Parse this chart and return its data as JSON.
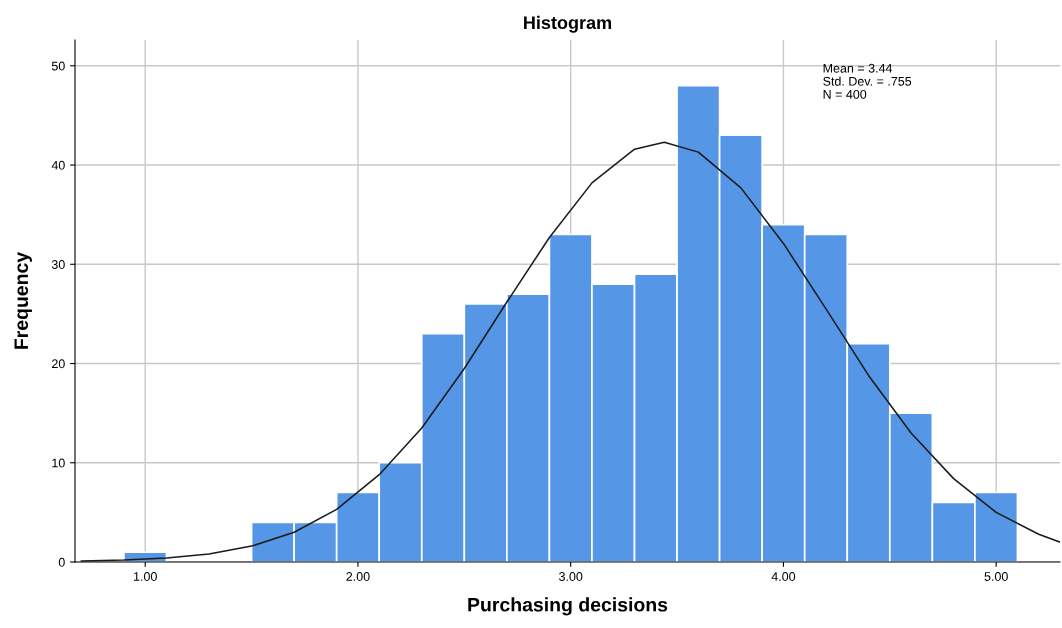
{
  "chart_data": {
    "type": "histogram",
    "title": "Histogram",
    "xlabel": "Purchasing decisions",
    "ylabel": "Frequency",
    "bins": [
      0.9,
      1.1,
      1.3,
      1.5,
      1.7,
      1.9,
      2.1,
      2.3,
      2.5,
      2.7,
      2.9,
      3.1,
      3.3,
      3.5,
      3.7,
      3.9,
      4.1,
      4.3,
      4.5,
      4.7,
      4.9,
      5.1
    ],
    "values": [
      1,
      0,
      0,
      4,
      4,
      7,
      10,
      23,
      26,
      27,
      33,
      28,
      29,
      48,
      43,
      34,
      33,
      22,
      15,
      6,
      7
    ],
    "color": "#5596e6",
    "series": [
      {
        "type": "line",
        "color": "#1a1a1a",
        "x": [
          0.7,
          0.9,
          1.1,
          1.3,
          1.5,
          1.7,
          1.9,
          2.1,
          2.3,
          2.5,
          2.7,
          2.9,
          3.1,
          3.3,
          3.44,
          3.6,
          3.8,
          4.0,
          4.2,
          4.4,
          4.6,
          4.8,
          5.0,
          5.2,
          5.3
        ],
        "values": [
          0.1,
          0.2,
          0.4,
          0.8,
          1.6,
          3.0,
          5.3,
          8.8,
          13.5,
          19.5,
          26.2,
          32.7,
          38.2,
          41.6,
          42.3,
          41.3,
          37.7,
          32.1,
          25.5,
          18.8,
          13.0,
          8.4,
          5.0,
          2.8,
          2.0
        ]
      }
    ],
    "xlim": [
      0.67,
      5.3
    ],
    "ylim": [
      0,
      52.6
    ],
    "xticks": [
      {
        "value": 1,
        "label": "1.00"
      },
      {
        "value": 2,
        "label": "2.00"
      },
      {
        "value": 3,
        "label": "3.00"
      },
      {
        "value": 4,
        "label": "4.00"
      },
      {
        "value": 5,
        "label": "5.00"
      }
    ],
    "yticks": [
      0,
      10,
      20,
      30,
      40,
      50
    ],
    "grid": true,
    "annotations": [
      "Mean = 3.44",
      "Std. Dev. = .755",
      "N = 400"
    ]
  }
}
